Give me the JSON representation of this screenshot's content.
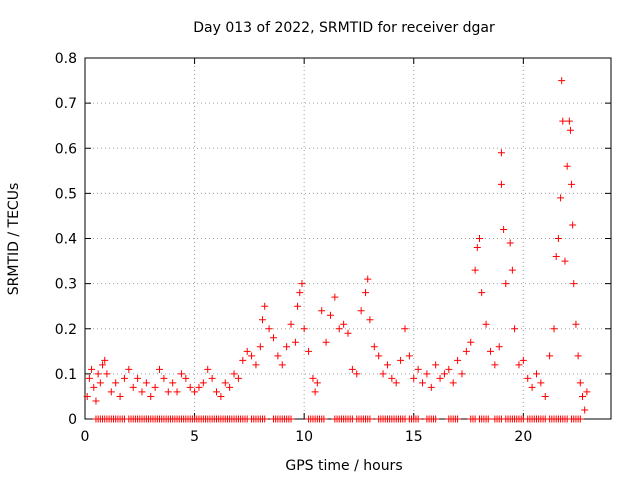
{
  "chart_data": {
    "type": "scatter",
    "title": "Day 013 of 2022, SRMTID for receiver dgar",
    "xlabel": "GPS time / hours",
    "ylabel": "SRMTID / TECUs",
    "xlim": [
      0,
      24
    ],
    "ylim": [
      0,
      0.8
    ],
    "xticks": [
      0,
      5,
      10,
      15,
      20
    ],
    "yticks": [
      0,
      0.1,
      0.2,
      0.3,
      0.4,
      0.5,
      0.6,
      0.7,
      0.8
    ],
    "grid": true,
    "marker": "plus",
    "color": "#ff0000",
    "series": [
      {
        "name": "SRMTID",
        "points": [
          [
            0.1,
            0.05
          ],
          [
            0.2,
            0.09
          ],
          [
            0.3,
            0.11
          ],
          [
            0.4,
            0.07
          ],
          [
            0.5,
            0.04
          ],
          [
            0.6,
            0.1
          ],
          [
            0.7,
            0.08
          ],
          [
            0.8,
            0.12
          ],
          [
            0.9,
            0.13
          ],
          [
            1.0,
            0.1
          ],
          [
            1.2,
            0.06
          ],
          [
            1.4,
            0.08
          ],
          [
            1.6,
            0.05
          ],
          [
            1.8,
            0.09
          ],
          [
            2.0,
            0.11
          ],
          [
            2.2,
            0.07
          ],
          [
            2.4,
            0.09
          ],
          [
            2.6,
            0.06
          ],
          [
            2.8,
            0.08
          ],
          [
            3.0,
            0.05
          ],
          [
            3.2,
            0.07
          ],
          [
            3.4,
            0.11
          ],
          [
            3.6,
            0.09
          ],
          [
            3.8,
            0.06
          ],
          [
            4.0,
            0.08
          ],
          [
            4.2,
            0.06
          ],
          [
            4.4,
            0.1
          ],
          [
            4.6,
            0.09
          ],
          [
            4.8,
            0.07
          ],
          [
            5.0,
            0.06
          ],
          [
            5.2,
            0.07
          ],
          [
            5.4,
            0.08
          ],
          [
            5.6,
            0.11
          ],
          [
            5.8,
            0.09
          ],
          [
            6.0,
            0.06
          ],
          [
            6.2,
            0.05
          ],
          [
            6.4,
            0.08
          ],
          [
            6.6,
            0.07
          ],
          [
            6.8,
            0.1
          ],
          [
            7.0,
            0.09
          ],
          [
            7.2,
            0.13
          ],
          [
            7.4,
            0.15
          ],
          [
            7.6,
            0.14
          ],
          [
            7.8,
            0.12
          ],
          [
            8.0,
            0.16
          ],
          [
            8.1,
            0.22
          ],
          [
            8.2,
            0.25
          ],
          [
            8.4,
            0.2
          ],
          [
            8.6,
            0.18
          ],
          [
            8.8,
            0.14
          ],
          [
            9.0,
            0.12
          ],
          [
            9.2,
            0.16
          ],
          [
            9.4,
            0.21
          ],
          [
            9.6,
            0.17
          ],
          [
            9.7,
            0.25
          ],
          [
            9.8,
            0.28
          ],
          [
            9.9,
            0.3
          ],
          [
            10.0,
            0.2
          ],
          [
            10.2,
            0.15
          ],
          [
            10.4,
            0.09
          ],
          [
            10.5,
            0.06
          ],
          [
            10.6,
            0.08
          ],
          [
            10.8,
            0.24
          ],
          [
            11.0,
            0.17
          ],
          [
            11.2,
            0.23
          ],
          [
            11.4,
            0.27
          ],
          [
            11.6,
            0.2
          ],
          [
            11.8,
            0.21
          ],
          [
            12.0,
            0.19
          ],
          [
            12.2,
            0.11
          ],
          [
            12.4,
            0.1
          ],
          [
            12.6,
            0.24
          ],
          [
            12.8,
            0.28
          ],
          [
            12.9,
            0.31
          ],
          [
            13.0,
            0.22
          ],
          [
            13.2,
            0.16
          ],
          [
            13.4,
            0.14
          ],
          [
            13.6,
            0.1
          ],
          [
            13.8,
            0.12
          ],
          [
            14.0,
            0.09
          ],
          [
            14.2,
            0.08
          ],
          [
            14.4,
            0.13
          ],
          [
            14.6,
            0.2
          ],
          [
            14.8,
            0.14
          ],
          [
            15.0,
            0.09
          ],
          [
            15.2,
            0.11
          ],
          [
            15.4,
            0.08
          ],
          [
            15.6,
            0.1
          ],
          [
            15.8,
            0.07
          ],
          [
            16.0,
            0.12
          ],
          [
            16.2,
            0.09
          ],
          [
            16.4,
            0.1
          ],
          [
            16.6,
            0.11
          ],
          [
            16.8,
            0.08
          ],
          [
            17.0,
            0.13
          ],
          [
            17.2,
            0.1
          ],
          [
            17.4,
            0.15
          ],
          [
            17.6,
            0.17
          ],
          [
            17.8,
            0.33
          ],
          [
            17.9,
            0.38
          ],
          [
            18.0,
            0.4
          ],
          [
            18.1,
            0.28
          ],
          [
            18.3,
            0.21
          ],
          [
            18.5,
            0.15
          ],
          [
            18.7,
            0.12
          ],
          [
            18.9,
            0.16
          ],
          [
            19.0,
            0.52
          ],
          [
            19.0,
            0.59
          ],
          [
            19.1,
            0.42
          ],
          [
            19.2,
            0.3
          ],
          [
            19.4,
            0.39
          ],
          [
            19.5,
            0.33
          ],
          [
            19.6,
            0.2
          ],
          [
            19.8,
            0.12
          ],
          [
            20.0,
            0.13
          ],
          [
            20.2,
            0.09
          ],
          [
            20.4,
            0.07
          ],
          [
            20.6,
            0.1
          ],
          [
            20.8,
            0.08
          ],
          [
            21.0,
            0.05
          ],
          [
            21.2,
            0.14
          ],
          [
            21.4,
            0.2
          ],
          [
            21.5,
            0.36
          ],
          [
            21.6,
            0.4
          ],
          [
            21.7,
            0.49
          ],
          [
            21.75,
            0.75
          ],
          [
            21.8,
            0.66
          ],
          [
            21.9,
            0.35
          ],
          [
            22.0,
            0.56
          ],
          [
            22.1,
            0.66
          ],
          [
            22.15,
            0.64
          ],
          [
            22.2,
            0.52
          ],
          [
            22.25,
            0.43
          ],
          [
            22.3,
            0.3
          ],
          [
            22.4,
            0.21
          ],
          [
            22.5,
            0.14
          ],
          [
            22.6,
            0.08
          ],
          [
            22.7,
            0.05
          ],
          [
            22.8,
            0.02
          ],
          [
            22.9,
            0.06
          ]
        ]
      },
      {
        "name": "zero-values",
        "x_ranges": [
          [
            0.5,
            1.8
          ],
          [
            2.0,
            7.4
          ],
          [
            7.6,
            8.2
          ],
          [
            8.6,
            9.4
          ],
          [
            10.2,
            10.9
          ],
          [
            11.4,
            12.2
          ],
          [
            12.4,
            13.0
          ],
          [
            13.4,
            14.6
          ],
          [
            14.8,
            15.2
          ],
          [
            15.6,
            16.0
          ],
          [
            16.6,
            17.0
          ],
          [
            17.6,
            17.8
          ],
          [
            18.0,
            18.4
          ],
          [
            18.7,
            19.0
          ],
          [
            19.2,
            20.0
          ],
          [
            20.2,
            21.0
          ],
          [
            21.2,
            21.6
          ],
          [
            21.7,
            22.0
          ],
          [
            22.2,
            22.6
          ]
        ],
        "y": 0
      }
    ]
  }
}
